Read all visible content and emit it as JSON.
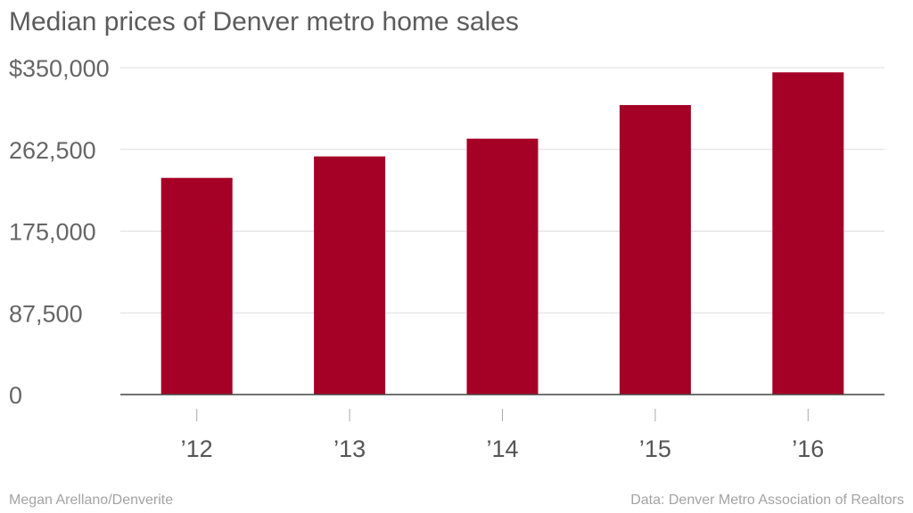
{
  "chart_data": {
    "type": "bar",
    "title": "Median prices of Denver metro home sales",
    "categories": [
      "’12",
      "’13",
      "’14",
      "’15",
      "’16"
    ],
    "values": [
      232000,
      255000,
      274000,
      310000,
      345000
    ],
    "ylim": [
      0,
      350000
    ],
    "yticks": [
      {
        "value": 0,
        "label": "0"
      },
      {
        "value": 87500,
        "label": "87,500"
      },
      {
        "value": 175000,
        "label": "175,000"
      },
      {
        "value": 262500,
        "label": "262,500"
      },
      {
        "value": 350000,
        "label": "$350,000"
      }
    ],
    "xlabel": "",
    "ylabel": "",
    "grid": true,
    "bar_color": "#a50026"
  },
  "footer": {
    "credit": "Megan Arellano/Denverite",
    "source": "Data: Denver Metro Association of Realtors"
  }
}
